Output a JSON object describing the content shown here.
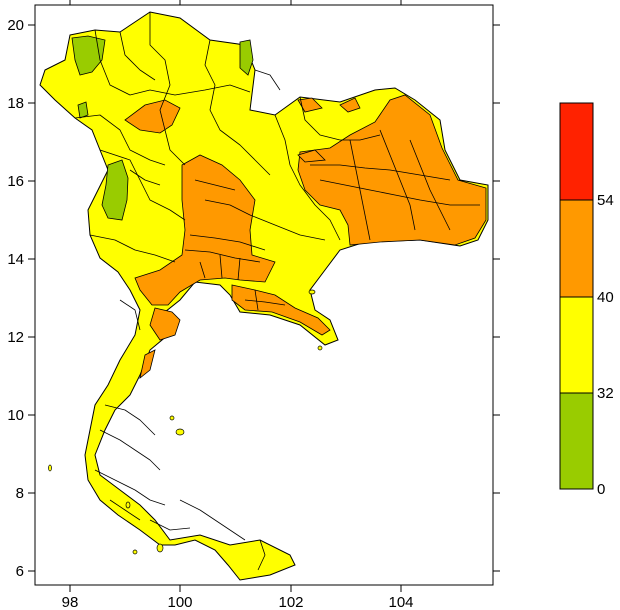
{
  "map": {
    "x_axis_ticks": [
      "98",
      "100",
      "102",
      "104"
    ],
    "y_axis_ticks": [
      "20",
      "18",
      "16",
      "14",
      "12",
      "10",
      "8",
      "6"
    ],
    "colors": {
      "green": "#99cc00",
      "yellow": "#ffff00",
      "orange": "#ff9900",
      "red": "#ff2200",
      "border": "#000000"
    }
  },
  "legend": {
    "labels": [
      "54",
      "40",
      "32",
      "0"
    ],
    "bins": [
      {
        "range": "0-32",
        "color": "#99cc00"
      },
      {
        "range": "32-40",
        "color": "#ffff00"
      },
      {
        "range": "40-54",
        "color": "#ff9900"
      },
      {
        "range": "54+",
        "color": "#ff2200"
      }
    ]
  }
}
